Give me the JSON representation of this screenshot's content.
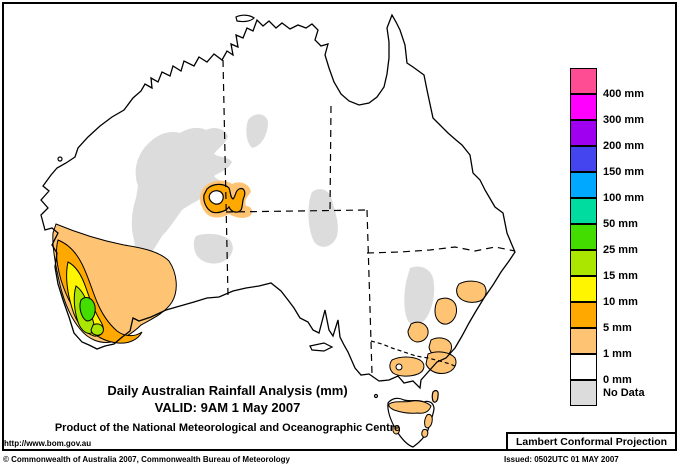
{
  "title": {
    "line1": "Daily Australian Rainfall Analysis (mm)",
    "line2": "VALID: 9AM  1 May 2007",
    "line3": "Product of the National Meteorological and Oceanographic Centre"
  },
  "footer": {
    "url": "http://www.bom.gov.au",
    "projection": "Lambert Conformal Projection",
    "copyright": "© Commonwealth of Australia 2007, Commonwealth Bureau of Meteorology",
    "issued": "Issued: 0502UTC 01 MAY 2007"
  },
  "legend": {
    "items": [
      {
        "color": "#FF4D94",
        "label": "400 mm"
      },
      {
        "color": "#FF00FF",
        "label": "300 mm"
      },
      {
        "color": "#A000F0",
        "label": "200 mm"
      },
      {
        "color": "#4545F0",
        "label": "150 mm"
      },
      {
        "color": "#00A8FF",
        "label": "100 mm"
      },
      {
        "color": "#00DCA0",
        "label": "50 mm"
      },
      {
        "color": "#44DD00",
        "label": "25 mm"
      },
      {
        "color": "#AAE600",
        "label": "15 mm"
      },
      {
        "color": "#FFF500",
        "label": "10 mm"
      },
      {
        "color": "#FFA800",
        "label": "5 mm"
      },
      {
        "color": "#FFC473",
        "label": "1 mm"
      },
      {
        "color": "#FFFFFF",
        "label": "0 mm"
      },
      {
        "color": "#DCDCDC",
        "label": "No Data"
      }
    ]
  },
  "colors": {
    "rain_1mm": "#FFC473",
    "rain_5mm": "#FFA800",
    "rain_10mm": "#FFF500",
    "rain_15mm": "#AAE600",
    "rain_25mm": "#44DD00",
    "no_data": "#DCDCDC",
    "land": "#FFFFFF",
    "outline": "#000000"
  }
}
